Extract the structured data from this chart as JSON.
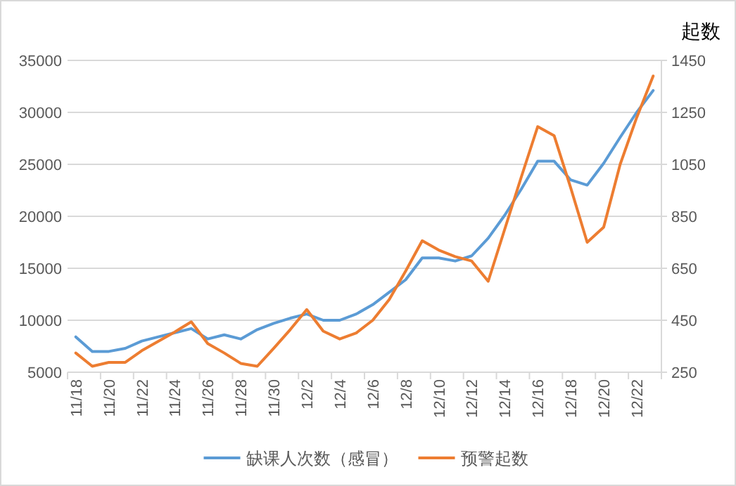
{
  "chart_data": {
    "type": "line",
    "y2label": "起数",
    "categories": [
      "11/18",
      null,
      "11/20",
      null,
      "11/22",
      null,
      "11/24",
      null,
      "11/26",
      null,
      "11/28",
      null,
      "11/30",
      null,
      "12/2",
      null,
      "12/4",
      null,
      "12/6",
      null,
      "12/8",
      null,
      "12/10",
      null,
      "12/12",
      null,
      "12/14",
      null,
      "12/16",
      null,
      "12/18",
      null,
      "12/20",
      null,
      "12/22",
      null
    ],
    "series": [
      {
        "name": "缺课人次数（感冒）",
        "color": "#5b9bd5",
        "values": [
          8400,
          7000,
          7000,
          7300,
          8000,
          8400,
          8800,
          9200,
          8200,
          8600,
          8200,
          9100,
          9700,
          10200,
          10600,
          10000,
          10000,
          10600,
          11500,
          12700,
          13900,
          16000,
          16000,
          15700,
          16200,
          17900,
          20100,
          22600,
          25300,
          25300,
          23500,
          23000,
          25100,
          27600,
          30000,
          32100
        ]
      },
      {
        "name": "预警起数",
        "color": "#ed7d31",
        "axis": "y2",
        "values": [
          324,
          273,
          288,
          288,
          333,
          369,
          405,
          444,
          360,
          324,
          284,
          273,
          342,
          414,
          491,
          408,
          378,
          401,
          450,
          530,
          640,
          756,
          720,
          695,
          678,
          600,
          800,
          1000,
          1195,
          1160,
          960,
          750,
          808,
          1050,
          1230,
          1390
        ]
      }
    ],
    "ylim": [
      5000,
      35000
    ],
    "yticks": [
      5000,
      10000,
      15000,
      20000,
      25000,
      30000,
      35000
    ],
    "y2lim": [
      250,
      1450
    ],
    "y2ticks": [
      250,
      450,
      650,
      850,
      1050,
      1250,
      1450
    ],
    "grid": "y",
    "legend": "bottom"
  }
}
